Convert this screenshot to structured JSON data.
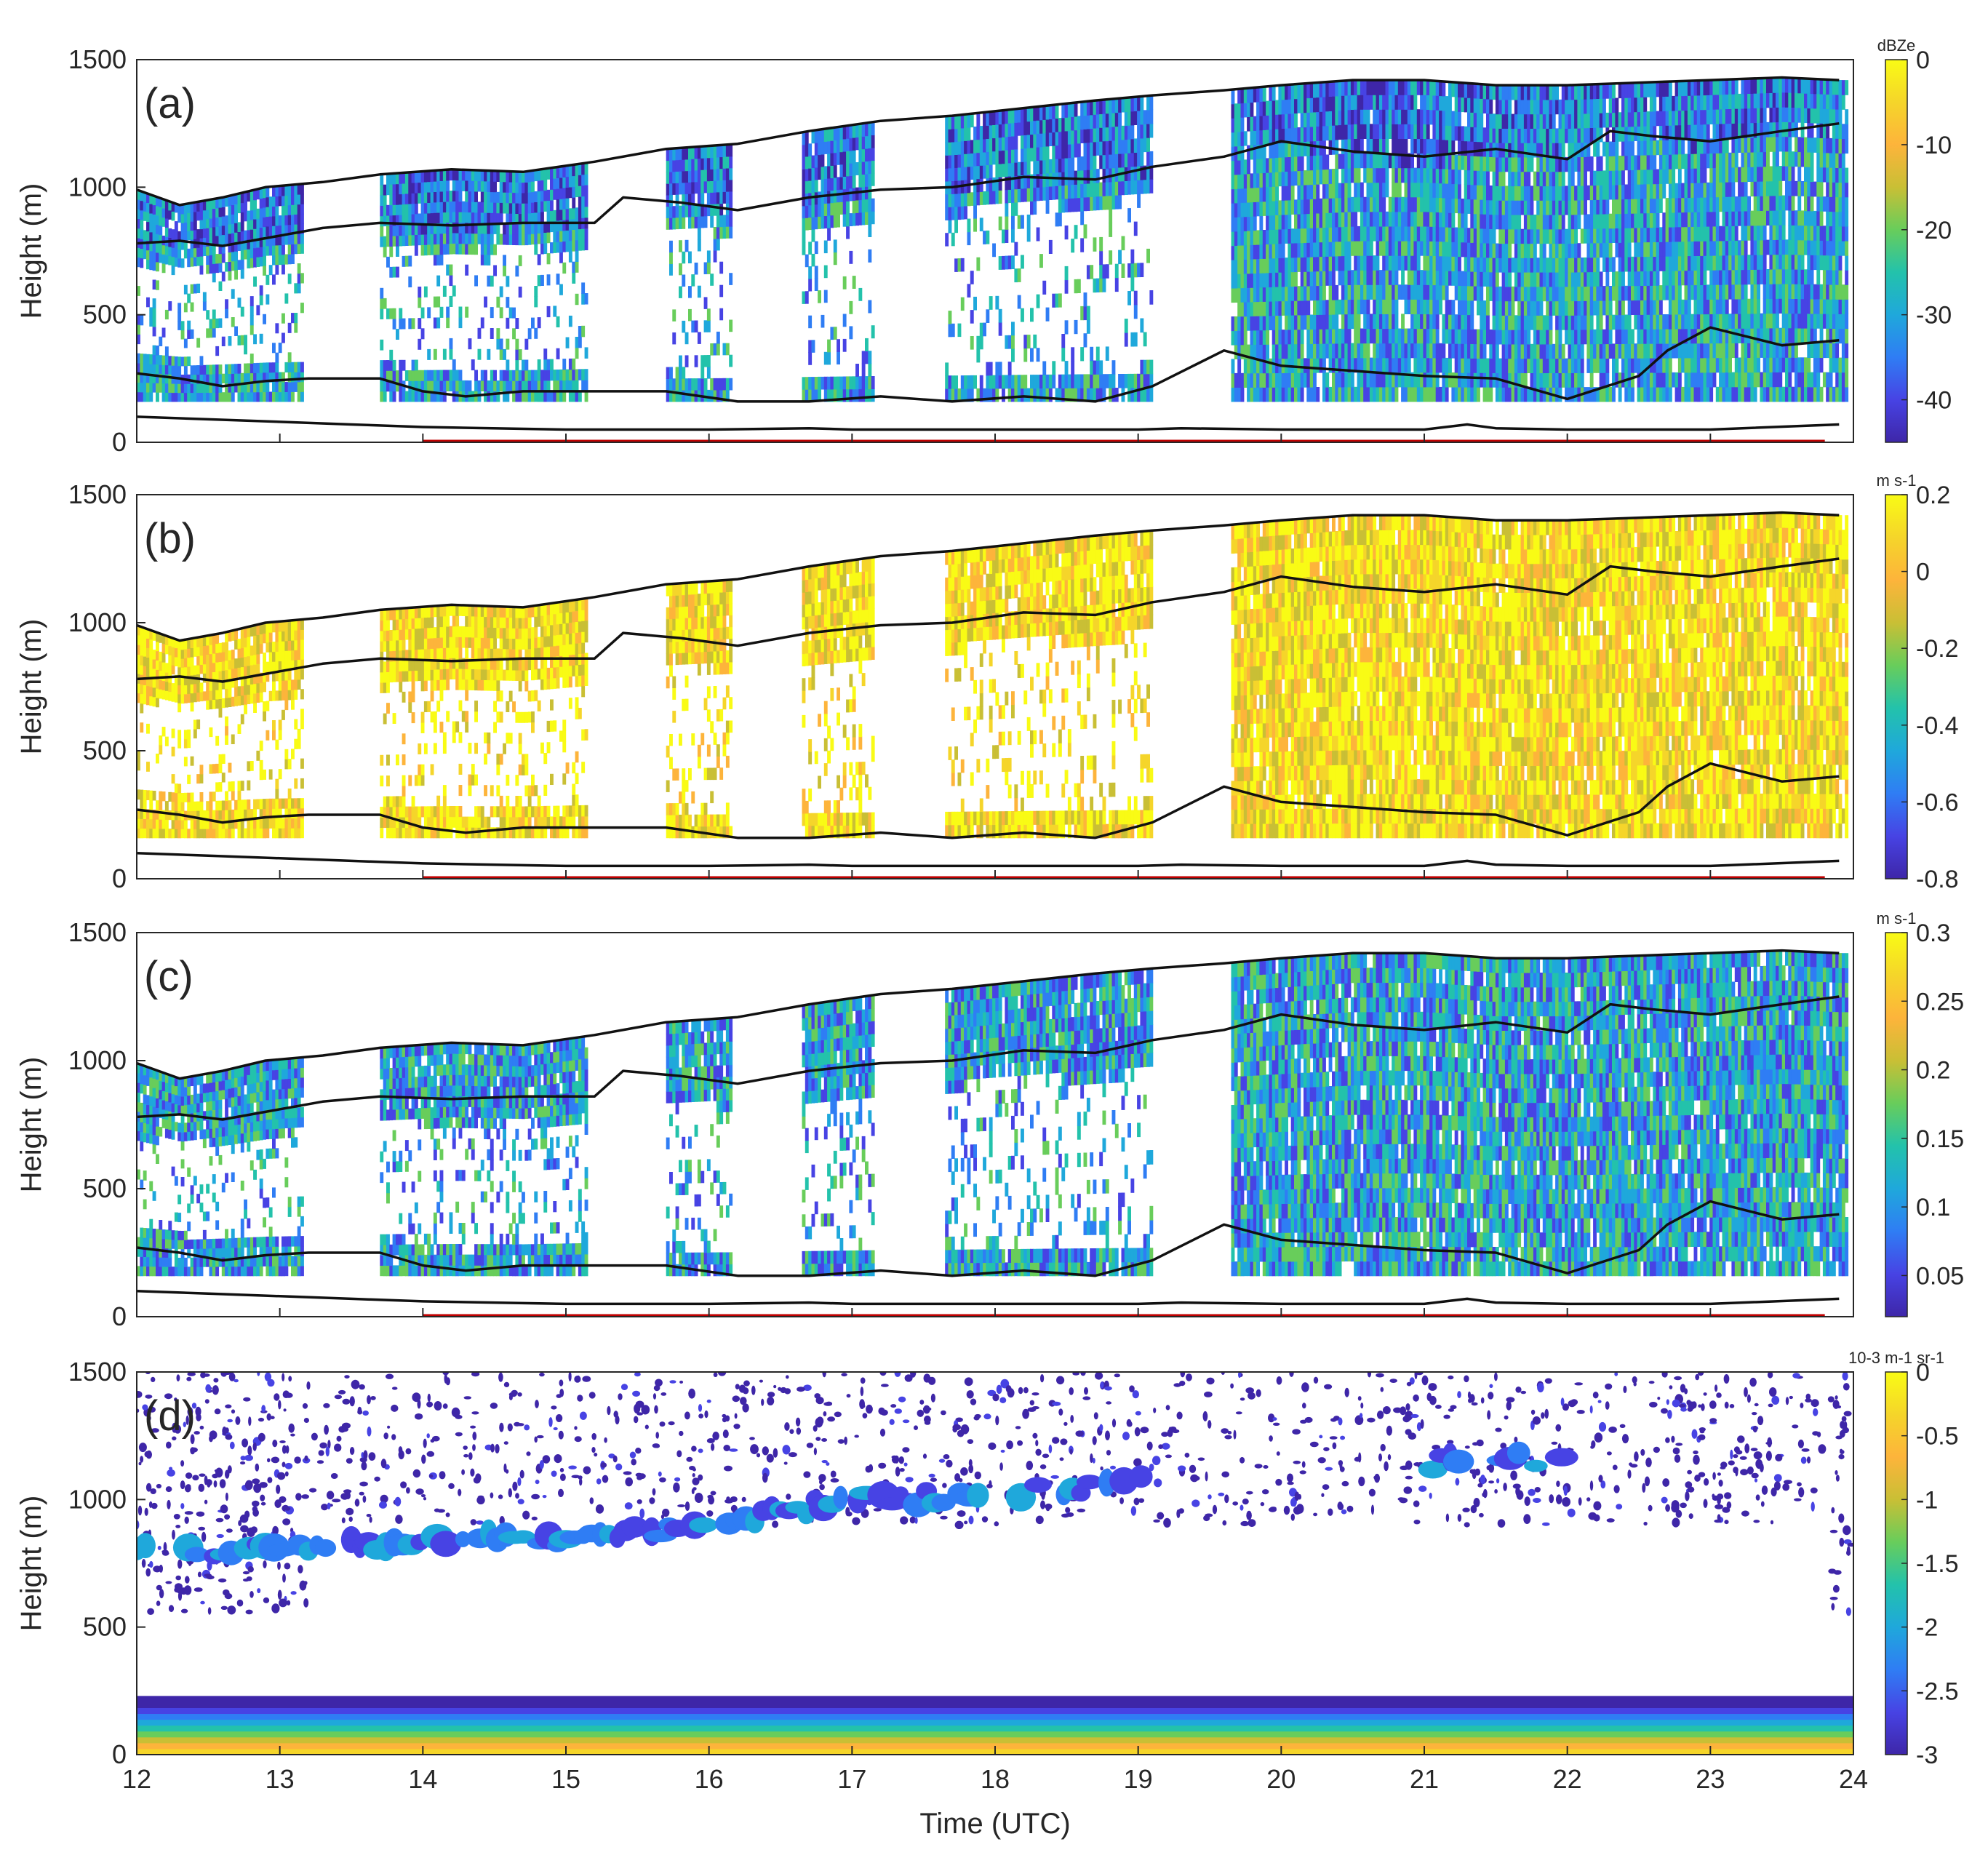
{
  "chart_data": {
    "type": "heatmap",
    "xlabel": "Time (UTC)",
    "xlim": [
      12,
      24
    ],
    "x_ticks": [
      "12",
      "13",
      "14",
      "15",
      "16",
      "17",
      "18",
      "19",
      "20",
      "21",
      "22",
      "23",
      "24"
    ],
    "colormap": [
      "#3e26a8",
      "#4743e4",
      "#2f7df4",
      "#1fa8db",
      "#23c2ab",
      "#68cd5b",
      "#c9bf35",
      "#fdb43b",
      "#f5d52a",
      "#f9fb15"
    ],
    "panels": [
      {
        "label": "(a)",
        "ylabel": "Height (m)",
        "ylim": [
          0,
          1500
        ],
        "y_ticks": [
          "0",
          "500",
          "1000",
          "1500"
        ],
        "colorbar": {
          "title": "dBZe",
          "range": [
            -45,
            0
          ],
          "ticks": [
            "0",
            "-10",
            "-20",
            "-30",
            "-40"
          ],
          "tick_values": [
            0,
            -10,
            -20,
            -30,
            -40
          ]
        },
        "dominant_color_index": 3,
        "segments": [
          [
            12.0,
            13.15
          ],
          [
            13.7,
            15.15
          ],
          [
            15.7,
            16.15
          ],
          [
            16.65,
            17.15
          ],
          [
            17.65,
            19.1
          ],
          [
            19.65,
            23.95
          ]
        ],
        "data_bottom": 160,
        "cloud_top": {
          "x": [
            12.0,
            12.3,
            12.6,
            12.9,
            13.3,
            13.7,
            14.2,
            14.7,
            15.2,
            15.7,
            16.2,
            16.7,
            17.2,
            17.7,
            18.2,
            18.7,
            19.1,
            19.6,
            20.0,
            20.5,
            21.0,
            21.5,
            22.0,
            22.5,
            23.0,
            23.5,
            23.9
          ],
          "y": [
            990,
            930,
            960,
            1000,
            1020,
            1050,
            1070,
            1060,
            1100,
            1150,
            1170,
            1220,
            1260,
            1280,
            1310,
            1340,
            1360,
            1380,
            1400,
            1420,
            1420,
            1400,
            1400,
            1410,
            1420,
            1430,
            1420
          ]
        },
        "level_2": {
          "x": [
            12.0,
            12.3,
            12.6,
            12.9,
            13.3,
            13.7,
            14.2,
            14.7,
            15.2,
            15.4,
            15.8,
            16.2,
            16.7,
            17.2,
            17.7,
            18.2,
            18.7,
            19.1,
            19.6,
            20.0,
            20.5,
            21.0,
            21.5,
            22.0,
            22.3,
            22.6,
            23.0,
            23.5,
            23.9
          ],
          "y": [
            780,
            790,
            770,
            800,
            840,
            860,
            850,
            860,
            860,
            960,
            940,
            910,
            960,
            990,
            1000,
            1040,
            1030,
            1080,
            1120,
            1180,
            1140,
            1120,
            1150,
            1110,
            1220,
            1200,
            1180,
            1220,
            1250
          ]
        },
        "cloud_base": {
          "x": [
            12.0,
            12.3,
            12.6,
            12.9,
            13.2,
            13.7,
            14.0,
            14.3,
            14.7,
            15.1,
            15.7,
            16.2,
            16.7,
            17.2,
            17.7,
            18.2,
            18.7,
            19.1,
            19.6,
            20.0,
            20.5,
            21.0,
            21.5,
            22.0,
            22.5,
            22.7,
            23.0,
            23.5,
            23.9
          ],
          "y": [
            270,
            250,
            220,
            240,
            250,
            250,
            200,
            180,
            200,
            200,
            200,
            160,
            160,
            180,
            160,
            180,
            160,
            220,
            360,
            300,
            280,
            260,
            250,
            170,
            260,
            360,
            450,
            380,
            400
          ]
        },
        "surface_line": {
          "x": [
            12.0,
            12.5,
            13.0,
            13.5,
            14.0,
            15.0,
            16.0,
            16.7,
            17.0,
            18.0,
            19.0,
            19.3,
            20.0,
            21.0,
            21.3,
            21.5,
            22.0,
            23.0,
            23.9
          ],
          "y": [
            100,
            90,
            80,
            70,
            60,
            50,
            50,
            55,
            50,
            50,
            50,
            55,
            50,
            50,
            70,
            55,
            50,
            50,
            70
          ]
        },
        "red_line": [
          14.0,
          23.8
        ]
      },
      {
        "label": "(b)",
        "ylabel": "Height (m)",
        "ylim": [
          0,
          1500
        ],
        "y_ticks": [
          "0",
          "500",
          "1000",
          "1500"
        ],
        "colorbar": {
          "title": "m s-1",
          "range": [
            -0.8,
            0.2
          ],
          "ticks": [
            "0.2",
            "0",
            "-0.2",
            "-0.4",
            "-0.6",
            "-0.8"
          ],
          "tick_values": [
            0.2,
            0,
            -0.2,
            -0.4,
            -0.6,
            -0.8
          ]
        },
        "dominant_color_index": 8,
        "segments": [
          [
            12.0,
            13.15
          ],
          [
            13.7,
            15.15
          ],
          [
            15.7,
            16.15
          ],
          [
            16.65,
            17.15
          ],
          [
            17.65,
            19.1
          ],
          [
            19.65,
            23.95
          ]
        ],
        "data_bottom": 160,
        "cloud_top": {
          "x": [
            12.0,
            12.3,
            12.6,
            12.9,
            13.3,
            13.7,
            14.2,
            14.7,
            15.2,
            15.7,
            16.2,
            16.7,
            17.2,
            17.7,
            18.2,
            18.7,
            19.1,
            19.6,
            20.0,
            20.5,
            21.0,
            21.5,
            22.0,
            22.5,
            23.0,
            23.5,
            23.9
          ],
          "y": [
            990,
            930,
            960,
            1000,
            1020,
            1050,
            1070,
            1060,
            1100,
            1150,
            1170,
            1220,
            1260,
            1280,
            1310,
            1340,
            1360,
            1380,
            1400,
            1420,
            1420,
            1400,
            1400,
            1410,
            1420,
            1430,
            1420
          ]
        },
        "level_2": {
          "x": [
            12.0,
            12.3,
            12.6,
            12.9,
            13.3,
            13.7,
            14.2,
            14.7,
            15.2,
            15.4,
            15.8,
            16.2,
            16.7,
            17.2,
            17.7,
            18.2,
            18.7,
            19.1,
            19.6,
            20.0,
            20.5,
            21.0,
            21.5,
            22.0,
            22.3,
            22.6,
            23.0,
            23.5,
            23.9
          ],
          "y": [
            780,
            790,
            770,
            800,
            840,
            860,
            850,
            860,
            860,
            960,
            940,
            910,
            960,
            990,
            1000,
            1040,
            1030,
            1080,
            1120,
            1180,
            1140,
            1120,
            1150,
            1110,
            1220,
            1200,
            1180,
            1220,
            1250
          ]
        },
        "cloud_base": {
          "x": [
            12.0,
            12.3,
            12.6,
            12.9,
            13.2,
            13.7,
            14.0,
            14.3,
            14.7,
            15.1,
            15.7,
            16.2,
            16.7,
            17.2,
            17.7,
            18.2,
            18.7,
            19.1,
            19.6,
            20.0,
            20.5,
            21.0,
            21.5,
            22.0,
            22.5,
            22.7,
            23.0,
            23.5,
            23.9
          ],
          "y": [
            270,
            250,
            220,
            240,
            250,
            250,
            200,
            180,
            200,
            200,
            200,
            160,
            160,
            180,
            160,
            180,
            160,
            220,
            360,
            300,
            280,
            260,
            250,
            170,
            260,
            360,
            450,
            380,
            400
          ]
        },
        "surface_line": {
          "x": [
            12.0,
            12.5,
            13.0,
            13.5,
            14.0,
            15.0,
            16.0,
            16.7,
            17.0,
            18.0,
            19.0,
            19.3,
            20.0,
            21.0,
            21.3,
            21.5,
            22.0,
            23.0,
            23.9
          ],
          "y": [
            100,
            90,
            80,
            70,
            60,
            50,
            50,
            55,
            50,
            50,
            50,
            55,
            50,
            50,
            70,
            55,
            50,
            50,
            70
          ]
        },
        "red_line": [
          14.0,
          23.8
        ]
      },
      {
        "label": "(c)",
        "ylabel": "Height (m)",
        "ylim": [
          0,
          1500
        ],
        "y_ticks": [
          "0",
          "500",
          "1000",
          "1500"
        ],
        "colorbar": {
          "title": "m s-1",
          "range": [
            0.02,
            0.3
          ],
          "ticks": [
            "0.3",
            "0.25",
            "0.2",
            "0.15",
            "0.1",
            "0.05"
          ],
          "tick_values": [
            0.3,
            0.25,
            0.2,
            0.15,
            0.1,
            0.05
          ]
        },
        "dominant_color_index": 3,
        "segments": [
          [
            12.0,
            13.15
          ],
          [
            13.7,
            15.15
          ],
          [
            15.7,
            16.15
          ],
          [
            16.65,
            17.15
          ],
          [
            17.65,
            19.1
          ],
          [
            19.65,
            23.95
          ]
        ],
        "data_bottom": 160,
        "cloud_top": {
          "x": [
            12.0,
            12.3,
            12.6,
            12.9,
            13.3,
            13.7,
            14.2,
            14.7,
            15.2,
            15.7,
            16.2,
            16.7,
            17.2,
            17.7,
            18.2,
            18.7,
            19.1,
            19.6,
            20.0,
            20.5,
            21.0,
            21.5,
            22.0,
            22.5,
            23.0,
            23.5,
            23.9
          ],
          "y": [
            990,
            930,
            960,
            1000,
            1020,
            1050,
            1070,
            1060,
            1100,
            1150,
            1170,
            1220,
            1260,
            1280,
            1310,
            1340,
            1360,
            1380,
            1400,
            1420,
            1420,
            1400,
            1400,
            1410,
            1420,
            1430,
            1420
          ]
        },
        "level_2": {
          "x": [
            12.0,
            12.3,
            12.6,
            12.9,
            13.3,
            13.7,
            14.2,
            14.7,
            15.2,
            15.4,
            15.8,
            16.2,
            16.7,
            17.2,
            17.7,
            18.2,
            18.7,
            19.1,
            19.6,
            20.0,
            20.5,
            21.0,
            21.5,
            22.0,
            22.3,
            22.6,
            23.0,
            23.5,
            23.9
          ],
          "y": [
            780,
            790,
            770,
            800,
            840,
            860,
            850,
            860,
            860,
            960,
            940,
            910,
            960,
            990,
            1000,
            1040,
            1030,
            1080,
            1120,
            1180,
            1140,
            1120,
            1150,
            1110,
            1220,
            1200,
            1180,
            1220,
            1250
          ]
        },
        "cloud_base": {
          "x": [
            12.0,
            12.3,
            12.6,
            12.9,
            13.2,
            13.7,
            14.0,
            14.3,
            14.7,
            15.1,
            15.7,
            16.2,
            16.7,
            17.2,
            17.7,
            18.2,
            18.7,
            19.1,
            19.6,
            20.0,
            20.5,
            21.0,
            21.5,
            22.0,
            22.5,
            22.7,
            23.0,
            23.5,
            23.9
          ],
          "y": [
            270,
            250,
            220,
            240,
            250,
            250,
            200,
            180,
            200,
            200,
            200,
            160,
            160,
            180,
            160,
            180,
            160,
            220,
            360,
            300,
            280,
            260,
            250,
            170,
            260,
            360,
            450,
            380,
            400
          ]
        },
        "surface_line": {
          "x": [
            12.0,
            12.5,
            13.0,
            13.5,
            14.0,
            15.0,
            16.0,
            16.7,
            17.0,
            18.0,
            19.0,
            19.3,
            20.0,
            21.0,
            21.3,
            21.5,
            22.0,
            23.0,
            23.9
          ],
          "y": [
            100,
            90,
            80,
            70,
            60,
            50,
            50,
            55,
            50,
            50,
            50,
            55,
            50,
            50,
            70,
            55,
            50,
            50,
            70
          ]
        },
        "red_line": [
          14.0,
          23.8
        ]
      },
      {
        "label": "(d)",
        "ylabel": "Height (m)",
        "ylim": [
          0,
          1500
        ],
        "y_ticks": [
          "0",
          "500",
          "1000",
          "1500"
        ],
        "colorbar": {
          "title": "10-3 m-1 sr-1",
          "range": [
            -3,
            0
          ],
          "ticks": [
            "0",
            "-0.5",
            "-1",
            "-1.5",
            "-2",
            "-2.5",
            "-3"
          ],
          "tick_values": [
            0,
            -0.5,
            -1,
            -1.5,
            -2,
            -2.5,
            -3
          ]
        },
        "surface_layer_top": 230,
        "cloud_layer": {
          "x": [
            12.0,
            12.5,
            13.0,
            13.5,
            14.0,
            14.5,
            15.0,
            15.5,
            16.0,
            16.5,
            17.0,
            17.5,
            18.0,
            18.5,
            19.0,
            21.0,
            21.5,
            22.0
          ],
          "y": [
            800,
            790,
            800,
            820,
            850,
            840,
            830,
            870,
            920,
            950,
            1000,
            1010,
            1020,
            1040,
            1060,
            1140,
            1160,
            1140
          ]
        }
      }
    ]
  }
}
